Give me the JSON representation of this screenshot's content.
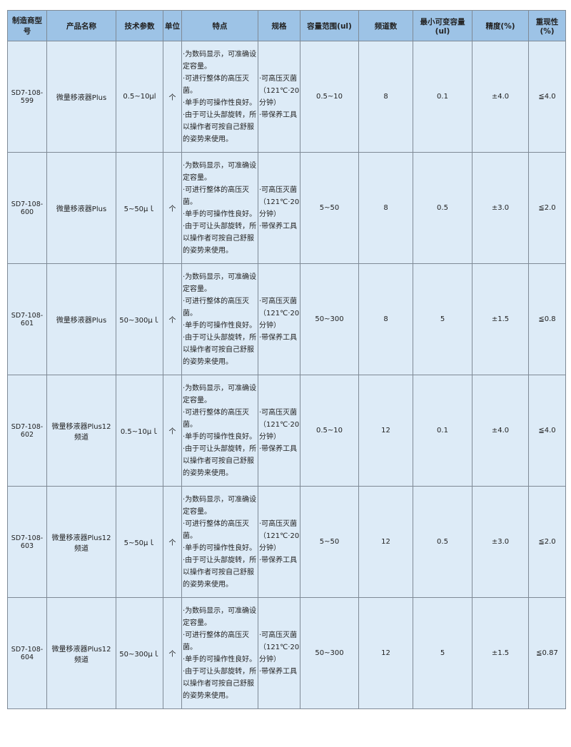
{
  "table": {
    "headers": [
      "制造商型号",
      "产品名称",
      "技术参数",
      "单位",
      "特点",
      "规格",
      "容量范围(ul)",
      "频道数",
      "最小可变容量(ul)",
      "精度(%)",
      "重现性(%)"
    ],
    "rows": [
      {
        "model": "SD7-108-599",
        "name": "微量移液器Plus",
        "param": "0.5~10μl",
        "unit": "个",
        "features": "·为数码显示，可准确设定容量。\n·可进行整体的高压灭菌。\n·单手的可操作性良好。\n·由于可让头部旋转，所以操作者可按自己舒服的姿势来使用。",
        "spec": "·可高压灭菌（121℃·20分钟）\n·带保养工具",
        "range": "0.5~10",
        "channels": "8",
        "min_vol": "0.1",
        "accuracy": "±4.0",
        "repeat": "≦4.0"
      },
      {
        "model": "SD7-108-600",
        "name": "微量移液器Plus",
        "param": "5~50μｌ",
        "unit": "个",
        "features": "·为数码显示，可准确设定容量。\n·可进行整体的高压灭菌。\n·单手的可操作性良好。\n·由于可让头部旋转，所以操作者可按自己舒服的姿势来使用。",
        "spec": "·可高压灭菌（121℃·20分钟）\n·带保养工具",
        "range": "5~50",
        "channels": "8",
        "min_vol": "0.5",
        "accuracy": "±3.0",
        "repeat": "≦2.0"
      },
      {
        "model": "SD7-108-601",
        "name": "微量移液器Plus",
        "param": "50~300μｌ",
        "unit": "个",
        "features": "·为数码显示，可准确设定容量。\n·可进行整体的高压灭菌。\n·单手的可操作性良好。\n·由于可让头部旋转，所以操作者可按自己舒服的姿势来使用。",
        "spec": "·可高压灭菌（121℃·20分钟）\n·带保养工具",
        "range": "50~300",
        "channels": "8",
        "min_vol": "5",
        "accuracy": "±1.5",
        "repeat": "≦0.8"
      },
      {
        "model": "SD7-108-602",
        "name": "微量移液器Plus12频道",
        "param": "0.5~10μｌ",
        "unit": "个",
        "features": "·为数码显示，可准确设定容量。\n·可进行整体的高压灭菌。\n·单手的可操作性良好。\n·由于可让头部旋转，所以操作者可按自己舒服的姿势来使用。",
        "spec": "·可高压灭菌（121℃·20分钟）\n·带保养工具",
        "range": "0.5~10",
        "channels": "12",
        "min_vol": "0.1",
        "accuracy": "±4.0",
        "repeat": "≦4.0"
      },
      {
        "model": "SD7-108-603",
        "name": "微量移液器Plus12频道",
        "param": "5~50μｌ",
        "unit": "个",
        "features": "·为数码显示，可准确设定容量。\n·可进行整体的高压灭菌。\n·单手的可操作性良好。\n·由于可让头部旋转，所以操作者可按自己舒服的姿势来使用。",
        "spec": "·可高压灭菌（121℃·20分钟）\n·带保养工具",
        "range": "5~50",
        "channels": "12",
        "min_vol": "0.5",
        "accuracy": "±3.0",
        "repeat": "≦2.0"
      },
      {
        "model": "SD7-108-604",
        "name": "微量移液器Plus12频道",
        "param": "50~300μｌ",
        "unit": "个",
        "features": "·为数码显示，可准确设定容量。\n·可进行整体的高压灭菌。\n·单手的可操作性良好。\n·由于可让头部旋转，所以操作者可按自己舒服的姿势来使用。",
        "spec": "·可高压灭菌（121℃·20分钟）\n·带保养工具",
        "range": "50~300",
        "channels": "12",
        "min_vol": "5",
        "accuracy": "±1.5",
        "repeat": "≦0.87"
      }
    ]
  },
  "colors": {
    "header_bg": "#9dc3e6",
    "cell_bg": "#ddebf7",
    "border": "#7f8a96"
  }
}
